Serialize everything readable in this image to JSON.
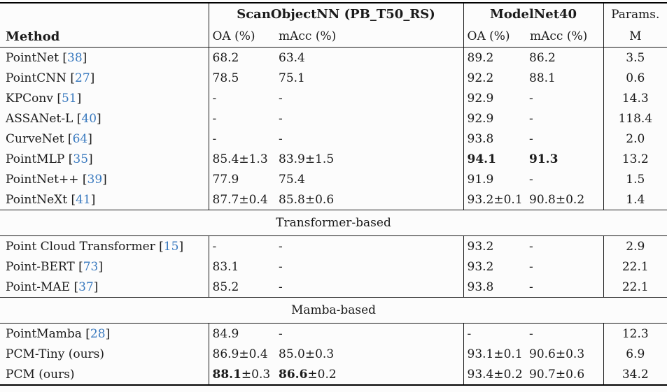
{
  "colors": {
    "citation_blue": "#3a7abf",
    "text": "#1b1b1b",
    "rule": "#1a1a1a",
    "background": "#fcfcfc"
  },
  "table": {
    "header": {
      "method": "Method",
      "group1": "ScanObjectNN (PB_T50_RS)",
      "group2": "ModelNet40",
      "oa": "OA (%)",
      "macc": "mAcc (%)",
      "params_top": "Params.",
      "params_bottom": "M"
    },
    "sections": [
      {
        "label": "",
        "rows": [
          {
            "pre": "PointNet [",
            "cite": "38",
            "post": "]",
            "cells": [
              {
                "b": "",
                "n": "68.2"
              },
              {
                "b": "",
                "n": "63.4"
              },
              {
                "b": "",
                "n": "89.2"
              },
              {
                "b": "",
                "n": "86.2"
              },
              {
                "b": "",
                "n": "3.5"
              }
            ]
          },
          {
            "pre": "PointCNN [",
            "cite": "27",
            "post": "]",
            "cells": [
              {
                "b": "",
                "n": "78.5"
              },
              {
                "b": "",
                "n": "75.1"
              },
              {
                "b": "",
                "n": "92.2"
              },
              {
                "b": "",
                "n": "88.1"
              },
              {
                "b": "",
                "n": "0.6"
              }
            ]
          },
          {
            "pre": "KPConv [",
            "cite": "51",
            "post": "]",
            "cells": [
              {
                "b": "",
                "n": "-"
              },
              {
                "b": "",
                "n": "-"
              },
              {
                "b": "",
                "n": "92.9"
              },
              {
                "b": "",
                "n": "-"
              },
              {
                "b": "",
                "n": "14.3"
              }
            ]
          },
          {
            "pre": "ASSANet-L [",
            "cite": "40",
            "post": "]",
            "cells": [
              {
                "b": "",
                "n": "-"
              },
              {
                "b": "",
                "n": "-"
              },
              {
                "b": "",
                "n": "92.9"
              },
              {
                "b": "",
                "n": "-"
              },
              {
                "b": "",
                "n": "118.4"
              }
            ]
          },
          {
            "pre": "CurveNet [",
            "cite": "64",
            "post": "]",
            "cells": [
              {
                "b": "",
                "n": "-"
              },
              {
                "b": "",
                "n": "-"
              },
              {
                "b": "",
                "n": "93.8"
              },
              {
                "b": "",
                "n": "-"
              },
              {
                "b": "",
                "n": "2.0"
              }
            ]
          },
          {
            "pre": "PointMLP [",
            "cite": "35",
            "post": "]",
            "cells": [
              {
                "b": "",
                "n": "85.4±1.3"
              },
              {
                "b": "",
                "n": "83.9±1.5"
              },
              {
                "b": "94.1",
                "n": ""
              },
              {
                "b": "91.3",
                "n": ""
              },
              {
                "b": "",
                "n": "13.2"
              }
            ]
          },
          {
            "pre": "PointNet++ [",
            "cite": "39",
            "post": "]",
            "cells": [
              {
                "b": "",
                "n": "77.9"
              },
              {
                "b": "",
                "n": "75.4"
              },
              {
                "b": "",
                "n": "91.9"
              },
              {
                "b": "",
                "n": "-"
              },
              {
                "b": "",
                "n": "1.5"
              }
            ]
          },
          {
            "pre": "PointNeXt [",
            "cite": "41",
            "post": "]",
            "cells": [
              {
                "b": "",
                "n": "87.7±0.4"
              },
              {
                "b": "",
                "n": "85.8±0.6"
              },
              {
                "b": "",
                "n": "93.2±0.1"
              },
              {
                "b": "",
                "n": "90.8±0.2"
              },
              {
                "b": "",
                "n": "1.4"
              }
            ]
          }
        ]
      },
      {
        "label": "Transformer-based",
        "rows": [
          {
            "pre": "Point Cloud Transformer [",
            "cite": "15",
            "post": "]",
            "cells": [
              {
                "b": "",
                "n": "-"
              },
              {
                "b": "",
                "n": "-"
              },
              {
                "b": "",
                "n": "93.2"
              },
              {
                "b": "",
                "n": "-"
              },
              {
                "b": "",
                "n": "2.9"
              }
            ]
          },
          {
            "pre": "Point-BERT [",
            "cite": "73",
            "post": "]",
            "cells": [
              {
                "b": "",
                "n": "83.1"
              },
              {
                "b": "",
                "n": "-"
              },
              {
                "b": "",
                "n": "93.2"
              },
              {
                "b": "",
                "n": "-"
              },
              {
                "b": "",
                "n": "22.1"
              }
            ]
          },
          {
            "pre": "Point-MAE [",
            "cite": "37",
            "post": "]",
            "cells": [
              {
                "b": "",
                "n": "85.2"
              },
              {
                "b": "",
                "n": "-"
              },
              {
                "b": "",
                "n": "93.8"
              },
              {
                "b": "",
                "n": "-"
              },
              {
                "b": "",
                "n": "22.1"
              }
            ]
          }
        ]
      },
      {
        "label": "Mamba-based",
        "rows": [
          {
            "pre": "PointMamba [",
            "cite": "28",
            "post": "]",
            "cells": [
              {
                "b": "",
                "n": "84.9"
              },
              {
                "b": "",
                "n": "-"
              },
              {
                "b": "",
                "n": "-"
              },
              {
                "b": "",
                "n": "-"
              },
              {
                "b": "",
                "n": "12.3"
              }
            ]
          },
          {
            "pre": "PCM-Tiny (ours)",
            "cite": "",
            "post": "",
            "cells": [
              {
                "b": "",
                "n": "86.9±0.4"
              },
              {
                "b": "",
                "n": "85.0±0.3"
              },
              {
                "b": "",
                "n": "93.1±0.1"
              },
              {
                "b": "",
                "n": "90.6±0.3"
              },
              {
                "b": "",
                "n": "6.9"
              }
            ]
          },
          {
            "pre": "PCM (ours)",
            "cite": "",
            "post": "",
            "cells": [
              {
                "b": "88.1",
                "n": "±0.3"
              },
              {
                "b": "86.6",
                "n": "±0.2"
              },
              {
                "b": "",
                "n": "93.4±0.2"
              },
              {
                "b": "",
                "n": "90.7±0.6"
              },
              {
                "b": "",
                "n": "34.2"
              }
            ]
          }
        ]
      }
    ]
  }
}
